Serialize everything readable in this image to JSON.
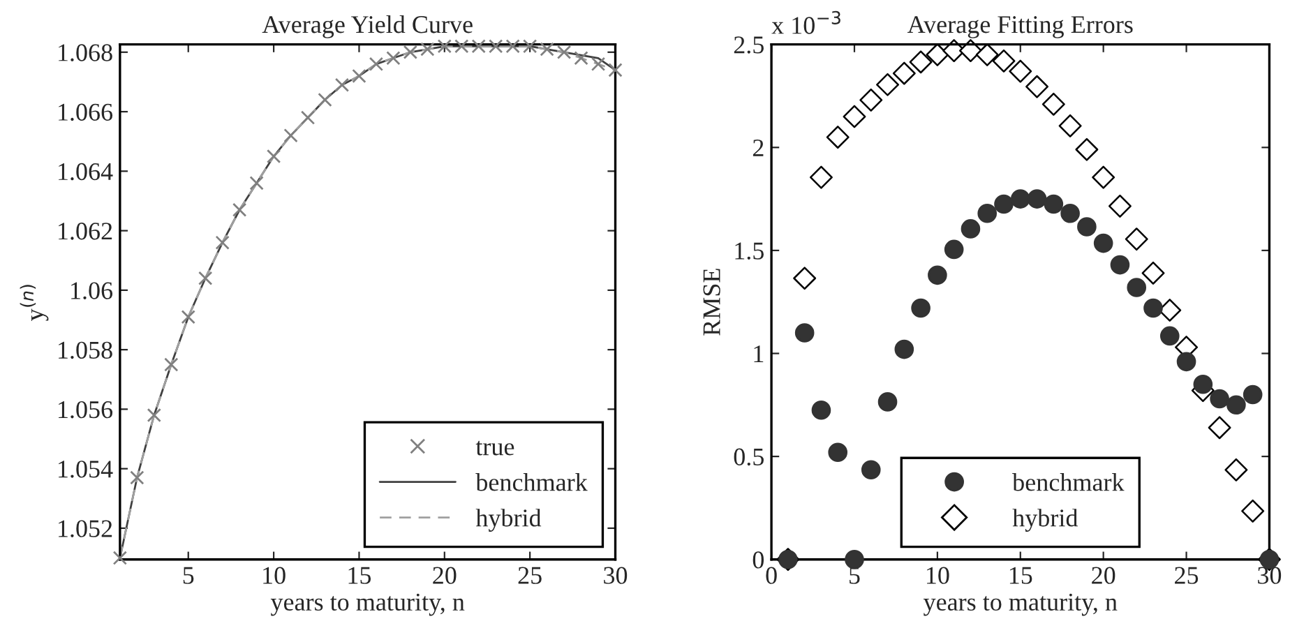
{
  "chart_data": [
    {
      "type": "line",
      "title": "Average Yield Curve",
      "xlabel": "years to maturity, n",
      "ylabel": "y$^{(n)}$",
      "x": [
        1,
        2,
        3,
        4,
        5,
        6,
        7,
        8,
        9,
        10,
        11,
        12,
        13,
        14,
        15,
        16,
        17,
        18,
        19,
        20,
        21,
        22,
        23,
        24,
        25,
        26,
        27,
        28,
        29,
        30
      ],
      "series": [
        {
          "name": "true",
          "type": "scatter",
          "marker": "cross",
          "color": "#808080",
          "values": [
            1.051,
            1.0537,
            1.0558,
            1.0575,
            1.0591,
            1.0604,
            1.0616,
            1.0627,
            1.0636,
            1.0645,
            1.0652,
            1.0658,
            1.0664,
            1.0669,
            1.0672,
            1.0676,
            1.0678,
            1.068,
            1.0681,
            1.0682,
            1.0682,
            1.0682,
            1.0682,
            1.0682,
            1.0682,
            1.0681,
            1.068,
            1.0678,
            1.0676,
            1.0674
          ]
        },
        {
          "name": "benchmark",
          "type": "line",
          "line_style": "solid",
          "color": "#404040",
          "values": [
            1.051,
            1.0537,
            1.0558,
            1.0575,
            1.0591,
            1.0604,
            1.0616,
            1.0627,
            1.0636,
            1.0645,
            1.0652,
            1.0658,
            1.0664,
            1.0669,
            1.0672,
            1.0676,
            1.0678,
            1.068,
            1.0681,
            1.0682,
            1.0682,
            1.0682,
            1.0682,
            1.0682,
            1.0682,
            1.0681,
            1.068,
            1.0679,
            1.0678,
            1.0674
          ]
        },
        {
          "name": "hybrid",
          "type": "line",
          "line_style": "dashed",
          "color": "#a0a0a0",
          "values": [
            1.051,
            1.0537,
            1.0558,
            1.0575,
            1.0591,
            1.0604,
            1.0616,
            1.0627,
            1.0636,
            1.0645,
            1.0652,
            1.0658,
            1.0664,
            1.0669,
            1.0672,
            1.0676,
            1.0678,
            1.068,
            1.0681,
            1.0682,
            1.0682,
            1.0682,
            1.0682,
            1.0682,
            1.0682,
            1.0681,
            1.068,
            1.0678,
            1.0676,
            1.0674
          ]
        }
      ],
      "xlim": [
        1,
        30
      ],
      "xticks": [
        5,
        10,
        15,
        20,
        25,
        30
      ],
      "ylim": [
        1.05095,
        1.06826
      ],
      "yticks": [
        1.052,
        1.054,
        1.056,
        1.058,
        1.06,
        1.062,
        1.064,
        1.066,
        1.068
      ],
      "legend": "bottom right",
      "grid": false
    },
    {
      "type": "scatter",
      "title": "Average Fitting Errors",
      "xlabel": "years to maturity, n",
      "ylabel": "RMSE",
      "annotations": [
        "x 10$^{−3}$"
      ],
      "x": [
        1,
        2,
        3,
        4,
        5,
        6,
        7,
        8,
        9,
        10,
        11,
        12,
        13,
        14,
        15,
        16,
        17,
        18,
        19,
        20,
        21,
        22,
        23,
        24,
        25,
        26,
        27,
        28,
        29,
        30
      ],
      "series": [
        {
          "name": "benchmark",
          "marker": "circle",
          "color": "#333333",
          "values": [
            0,
            1.1,
            0.725,
            0.52,
            0,
            0.435,
            0.765,
            1.02,
            1.22,
            1.38,
            1.505,
            1.605,
            1.68,
            1.725,
            1.75,
            1.75,
            1.725,
            1.68,
            1.615,
            1.535,
            1.43,
            1.32,
            1.22,
            1.085,
            0.96,
            0.85,
            0.78,
            0.75,
            0.8,
            0
          ]
        },
        {
          "name": "hybrid",
          "marker": "diamond",
          "color": "#000000",
          "values": [
            0,
            1.365,
            1.855,
            2.05,
            2.15,
            2.23,
            2.305,
            2.36,
            2.415,
            2.45,
            2.47,
            2.47,
            2.45,
            2.42,
            2.37,
            2.295,
            2.21,
            2.105,
            1.99,
            1.855,
            1.715,
            1.555,
            1.39,
            1.21,
            1.03,
            0.82,
            0.64,
            0.435,
            0.235,
            0
          ]
        }
      ],
      "xlim": [
        0,
        30
      ],
      "xticks": [
        0,
        5,
        10,
        15,
        20,
        25,
        30
      ],
      "ylim": [
        0,
        2.5
      ],
      "yticks": [
        0,
        0.5,
        1,
        1.5,
        2,
        2.5
      ],
      "legend": "bottom",
      "grid": false
    }
  ]
}
